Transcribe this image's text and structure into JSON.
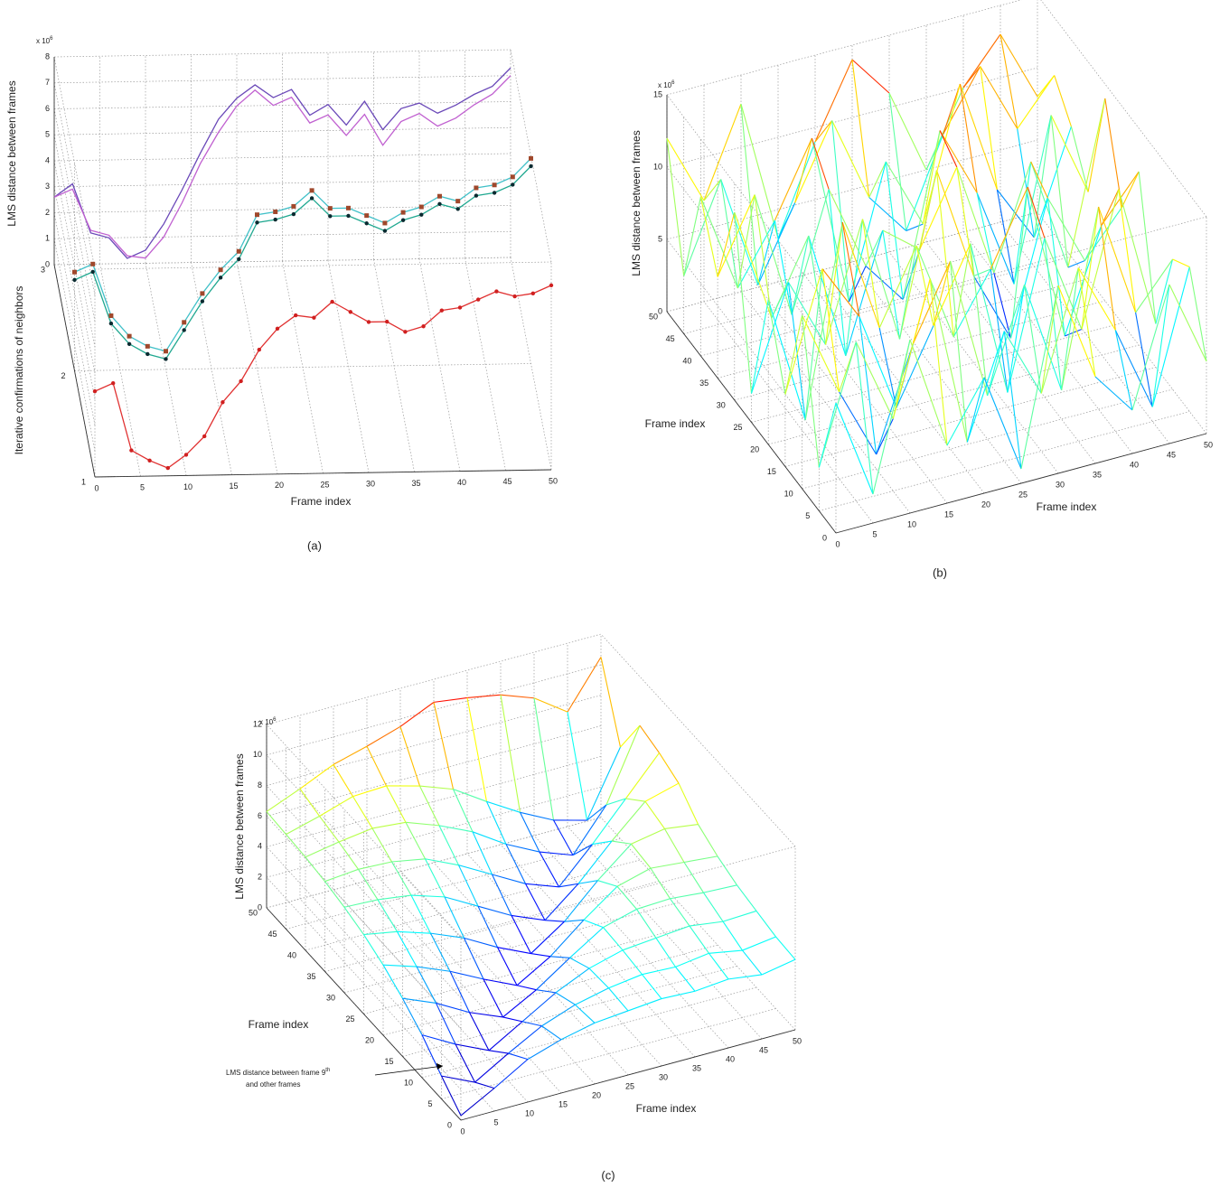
{
  "chart_data": [
    {
      "type": "line3d",
      "caption": "(a)",
      "xlabel": "Frame index",
      "ylabel": "Iterative confirmations of neighbors",
      "zlabel": "LMS distance between frames",
      "z_multiplier": {
        "base": "x 10",
        "exponent": "6"
      },
      "xlim": [
        0,
        50
      ],
      "ylim": [
        1,
        3
      ],
      "zlim": [
        0,
        8
      ],
      "xticks": [
        0,
        5,
        10,
        15,
        20,
        25,
        30,
        35,
        40,
        45,
        50
      ],
      "yticks": [
        1,
        2,
        3
      ],
      "zticks": [
        0,
        1,
        2,
        3,
        4,
        5,
        6,
        7,
        8
      ],
      "grid": true,
      "x": [
        0,
        2,
        4,
        6,
        8,
        10,
        12,
        14,
        16,
        18,
        20,
        22,
        24,
        26,
        28,
        30,
        32,
        34,
        36,
        38,
        40,
        42,
        44,
        46,
        48,
        50
      ],
      "series": [
        {
          "color": "#6a48b8",
          "depth": 3,
          "values": [
            2.6,
            3.1,
            1.2,
            1.0,
            0.2,
            0.5,
            1.5,
            2.8,
            4.2,
            5.5,
            6.3,
            6.8,
            6.3,
            6.6,
            5.6,
            6.0,
            5.2,
            6.1,
            5.0,
            5.8,
            6.0,
            5.6,
            5.9,
            6.3,
            6.6,
            7.3
          ]
        },
        {
          "color": "#c060d0",
          "depth": 3,
          "values": [
            2.6,
            2.9,
            1.3,
            1.1,
            0.3,
            0.2,
            1.0,
            2.3,
            3.8,
            5.0,
            6.0,
            6.6,
            6.0,
            6.3,
            5.3,
            5.6,
            4.8,
            5.6,
            4.4,
            5.3,
            5.6,
            5.1,
            5.4,
            5.9,
            6.3,
            7.0
          ]
        },
        {
          "color": "#20a890",
          "depth": 2,
          "marker": "circle",
          "marker_color": "#0a2a30",
          "values": [
            3.5,
            3.8,
            1.8,
            1.0,
            0.6,
            0.4,
            1.5,
            2.6,
            3.5,
            4.2,
            5.6,
            5.7,
            5.9,
            6.5,
            5.8,
            5.8,
            5.5,
            5.2,
            5.6,
            5.8,
            6.2,
            6.0,
            6.5,
            6.6,
            6.9,
            7.6
          ]
        },
        {
          "color": "#40c0c8",
          "depth": 2,
          "marker": "square",
          "marker_color": "#a0482c",
          "values": [
            3.8,
            4.1,
            2.1,
            1.3,
            0.9,
            0.7,
            1.8,
            2.9,
            3.8,
            4.5,
            5.9,
            6.0,
            6.2,
            6.8,
            6.1,
            6.1,
            5.8,
            5.5,
            5.9,
            6.1,
            6.5,
            6.3,
            6.8,
            6.9,
            7.2,
            7.9
          ]
        },
        {
          "color": "#e03030",
          "depth": 1,
          "marker": "circle",
          "marker_color": "#d02020",
          "values": [
            3.3,
            3.6,
            1.0,
            0.6,
            0.3,
            0.8,
            1.5,
            2.8,
            3.6,
            4.8,
            5.6,
            6.1,
            6.0,
            6.6,
            6.2,
            5.8,
            5.8,
            5.4,
            5.6,
            6.2,
            6.3,
            6.6,
            6.9,
            6.7,
            6.8,
            7.1
          ]
        }
      ]
    },
    {
      "type": "surface",
      "caption": "(b)",
      "xlabel": "Frame index",
      "ylabel": "Frame index",
      "zlabel": "LMS distance between frames",
      "z_multiplier": {
        "base": "x 10",
        "exponent": "6"
      },
      "colormap": "jet",
      "xlim": [
        0,
        50
      ],
      "ylim": [
        0,
        50
      ],
      "zlim": [
        0,
        15
      ],
      "xticks": [
        0,
        5,
        10,
        15,
        20,
        25,
        30,
        35,
        40,
        45,
        50
      ],
      "yticks": [
        0,
        5,
        10,
        15,
        20,
        25,
        30,
        35,
        40,
        45,
        50
      ],
      "zticks": [
        0,
        5,
        10,
        15
      ],
      "grid": true,
      "x": [
        0,
        5,
        10,
        15,
        20,
        25,
        30,
        35,
        40,
        45,
        50
      ],
      "y": [
        0,
        5,
        10,
        15,
        20,
        25,
        30,
        35,
        40,
        45,
        50
      ],
      "z": [
        [
          9,
          2,
          12,
          4,
          8,
          1,
          13,
          6,
          3,
          11,
          5
        ],
        [
          3,
          11,
          5,
          14,
          2,
          9,
          4,
          12,
          7,
          1,
          10
        ],
        [
          12,
          6,
          1,
          8,
          13,
          3,
          10,
          2,
          14,
          6,
          9
        ],
        [
          5,
          13,
          9,
          2,
          7,
          12,
          1,
          11,
          4,
          13,
          3
        ],
        [
          10,
          1,
          14,
          6,
          11,
          4,
          8,
          13,
          2,
          9,
          12
        ],
        [
          2,
          9,
          4,
          12,
          3,
          14,
          6,
          1,
          10,
          5,
          8
        ],
        [
          13,
          5,
          10,
          1,
          9,
          7,
          12,
          4,
          11,
          3,
          14
        ],
        [
          7,
          12,
          3,
          11,
          5,
          2,
          13,
          8,
          1,
          12,
          6
        ],
        [
          11,
          4,
          8,
          13,
          1,
          10,
          5,
          14,
          6,
          2,
          9
        ],
        [
          4,
          10,
          2,
          7,
          12,
          6,
          3,
          9,
          13,
          8,
          11
        ],
        [
          12,
          7,
          13,
          3,
          9,
          14,
          11,
          5,
          10,
          13,
          8
        ]
      ]
    },
    {
      "type": "surface",
      "caption": "(c)",
      "xlabel": "Frame index",
      "ylabel": "Frame index",
      "zlabel": "LMS distance between frames",
      "z_multiplier": {
        "base": "x 10",
        "exponent": "6"
      },
      "colormap": "jet",
      "annotation": {
        "line1": "LMS distance between frame 9",
        "superscript": "th",
        "line2": "and other frames"
      },
      "xlim": [
        0,
        50
      ],
      "ylim": [
        0,
        50
      ],
      "zlim": [
        0,
        12
      ],
      "xticks": [
        0,
        5,
        10,
        15,
        20,
        25,
        30,
        35,
        40,
        45,
        50
      ],
      "yticks": [
        0,
        5,
        10,
        15,
        20,
        25,
        30,
        35,
        40,
        45,
        50
      ],
      "zticks": [
        0,
        2,
        4,
        6,
        8,
        10,
        12
      ],
      "grid": true,
      "x": [
        0,
        5,
        10,
        15,
        20,
        25,
        30,
        35,
        40,
        45,
        50
      ],
      "y": [
        0,
        5,
        10,
        15,
        20,
        25,
        30,
        35,
        40,
        45,
        50
      ],
      "z": [
        [
          0.3,
          1.5,
          2.8,
          3.5,
          4.0,
          4.2,
          4.4,
          4.3,
          4.5,
          4.2,
          4.6
        ],
        [
          1.5,
          0.5,
          1.8,
          3.0,
          3.8,
          4.3,
          4.6,
          4.5,
          4.8,
          4.4,
          4.7
        ],
        [
          2.8,
          1.6,
          0.6,
          1.9,
          3.2,
          4.2,
          4.8,
          5.0,
          5.2,
          4.9,
          5.0
        ],
        [
          3.8,
          2.9,
          1.7,
          0.8,
          2.0,
          3.5,
          4.9,
          5.5,
          5.6,
          5.4,
          5.3
        ],
        [
          4.6,
          3.9,
          3.0,
          1.9,
          0.9,
          2.2,
          4.0,
          5.6,
          6.2,
          6.0,
          5.8
        ],
        [
          5.2,
          4.8,
          4.1,
          3.2,
          2.0,
          1.0,
          2.5,
          4.6,
          6.4,
          6.8,
          6.5
        ],
        [
          5.6,
          5.5,
          5.2,
          4.5,
          3.3,
          2.1,
          1.2,
          3.0,
          5.2,
          7.2,
          7.8
        ],
        [
          5.9,
          6.1,
          6.0,
          5.6,
          4.6,
          3.4,
          2.2,
          1.4,
          3.6,
          6.0,
          8.4
        ],
        [
          6.1,
          6.5,
          6.8,
          6.6,
          5.8,
          4.8,
          3.4,
          2.3,
          1.5,
          4.2,
          8.8
        ],
        [
          6.2,
          6.8,
          7.5,
          7.6,
          7.0,
          6.2,
          4.8,
          3.5,
          2.4,
          1.8,
          6.0
        ],
        [
          6.3,
          7.2,
          8.2,
          8.8,
          9.5,
          10.5,
          10.2,
          9.8,
          9.0,
          7.5,
          10.5
        ]
      ]
    }
  ]
}
